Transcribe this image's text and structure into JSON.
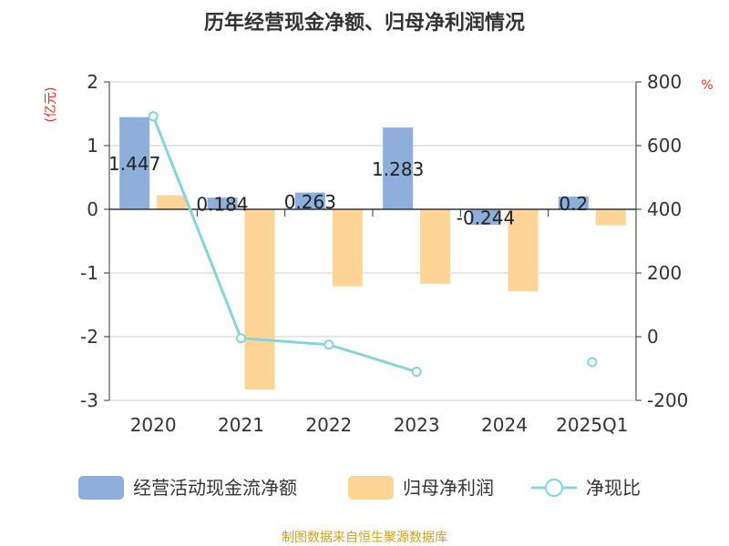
{
  "title": "历年经营现金净额、归母净利润情况",
  "source": "制图数据来自恒生聚源数据库",
  "colors": {
    "operating_cash_flow": "#8eaedb",
    "net_profit": "#ffd597",
    "net_cash_ratio": "#86d3dc"
  },
  "chart_data": {
    "type": "bar",
    "title": "历年经营现金净额、归母净利润情况",
    "categories": [
      "2020",
      "2021",
      "2022",
      "2023",
      "2024",
      "2025Q1"
    ],
    "y_left": {
      "label": "(亿元)",
      "range": [
        -3,
        2
      ],
      "ticks": [
        "2",
        "1",
        "0",
        "-1",
        "-2",
        "-3"
      ]
    },
    "y_right": {
      "label": "%",
      "range": [
        -200,
        800
      ],
      "ticks": [
        "800",
        "600",
        "400",
        "200",
        "0",
        "-200"
      ]
    },
    "series": [
      {
        "name": "经营活动现金流净额",
        "axis": "left",
        "type": "bar",
        "values": [
          1.447,
          0.184,
          0.263,
          1.283,
          -0.244,
          0.2
        ],
        "labels": [
          "1.447",
          "0.184",
          "0.263",
          "1.283",
          "-0.244",
          "0.2"
        ]
      },
      {
        "name": "归母净利润",
        "axis": "left",
        "type": "bar",
        "values": [
          0.22,
          -2.83,
          -1.21,
          -1.17,
          -1.29,
          -0.25
        ]
      },
      {
        "name": "净现比",
        "axis": "right",
        "type": "line",
        "values": [
          692,
          -5,
          -25,
          -110,
          null,
          -80
        ]
      }
    ],
    "legend_position": "bottom"
  }
}
